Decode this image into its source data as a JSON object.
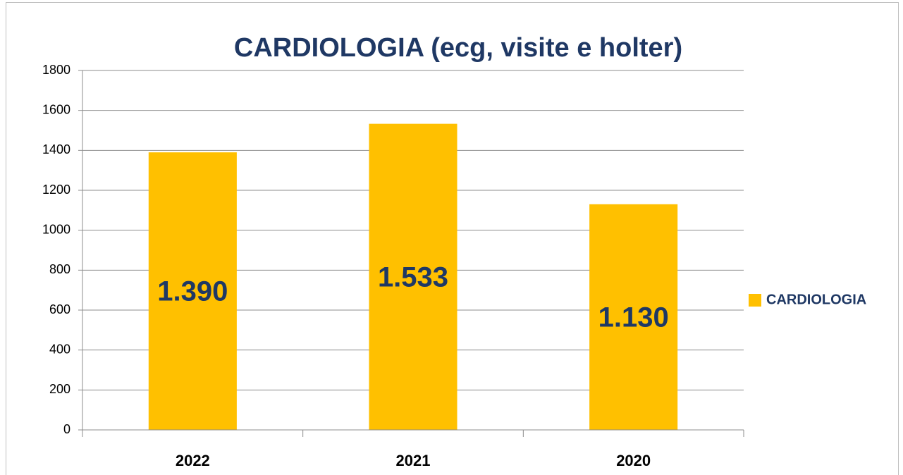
{
  "chart_data": {
    "type": "bar",
    "title": "CARDIOLOGIA (ecg, visite e holter)",
    "categories": [
      "2022",
      "2021",
      "2020"
    ],
    "series": [
      {
        "name": "CARDIOLOGIA",
        "color": "#FFC000",
        "values": [
          1390,
          1533,
          1130
        ],
        "value_labels": [
          "1.390",
          "1.533",
          "1.130"
        ]
      }
    ],
    "ylim": [
      0,
      1800
    ],
    "yticks": [
      0,
      200,
      400,
      600,
      800,
      1000,
      1200,
      1400,
      1600,
      1800
    ],
    "grid": true,
    "legend": "right"
  }
}
